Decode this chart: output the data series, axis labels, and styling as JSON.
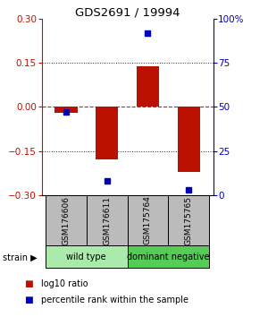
{
  "title": "GDS2691 / 19994",
  "samples": [
    "GSM176606",
    "GSM176611",
    "GSM175764",
    "GSM175765"
  ],
  "log10_ratio": [
    -0.02,
    -0.18,
    0.14,
    -0.22
  ],
  "percentile_rank": [
    47,
    8,
    92,
    3
  ],
  "groups": [
    {
      "label": "wild type",
      "start": 0,
      "end": 2,
      "color": "#aaeaaa"
    },
    {
      "label": "dominant negative",
      "start": 2,
      "end": 4,
      "color": "#55cc55"
    }
  ],
  "ylim_left": [
    -0.3,
    0.3
  ],
  "ylim_right": [
    0,
    100
  ],
  "yticks_left": [
    -0.3,
    -0.15,
    0,
    0.15,
    0.3
  ],
  "yticks_right": [
    0,
    25,
    50,
    75,
    100
  ],
  "ytick_labels_right": [
    "0",
    "25",
    "50",
    "75",
    "100%"
  ],
  "bar_color": "#bb1100",
  "dot_color": "#0000bb",
  "zero_line_color": "#cc2200",
  "grid_color": "#222222",
  "sample_box_color": "#bbbbbb",
  "strain_label": "strain",
  "legend_ratio_label": "log10 ratio",
  "legend_percentile_label": "percentile rank within the sample",
  "bar_width": 0.55
}
